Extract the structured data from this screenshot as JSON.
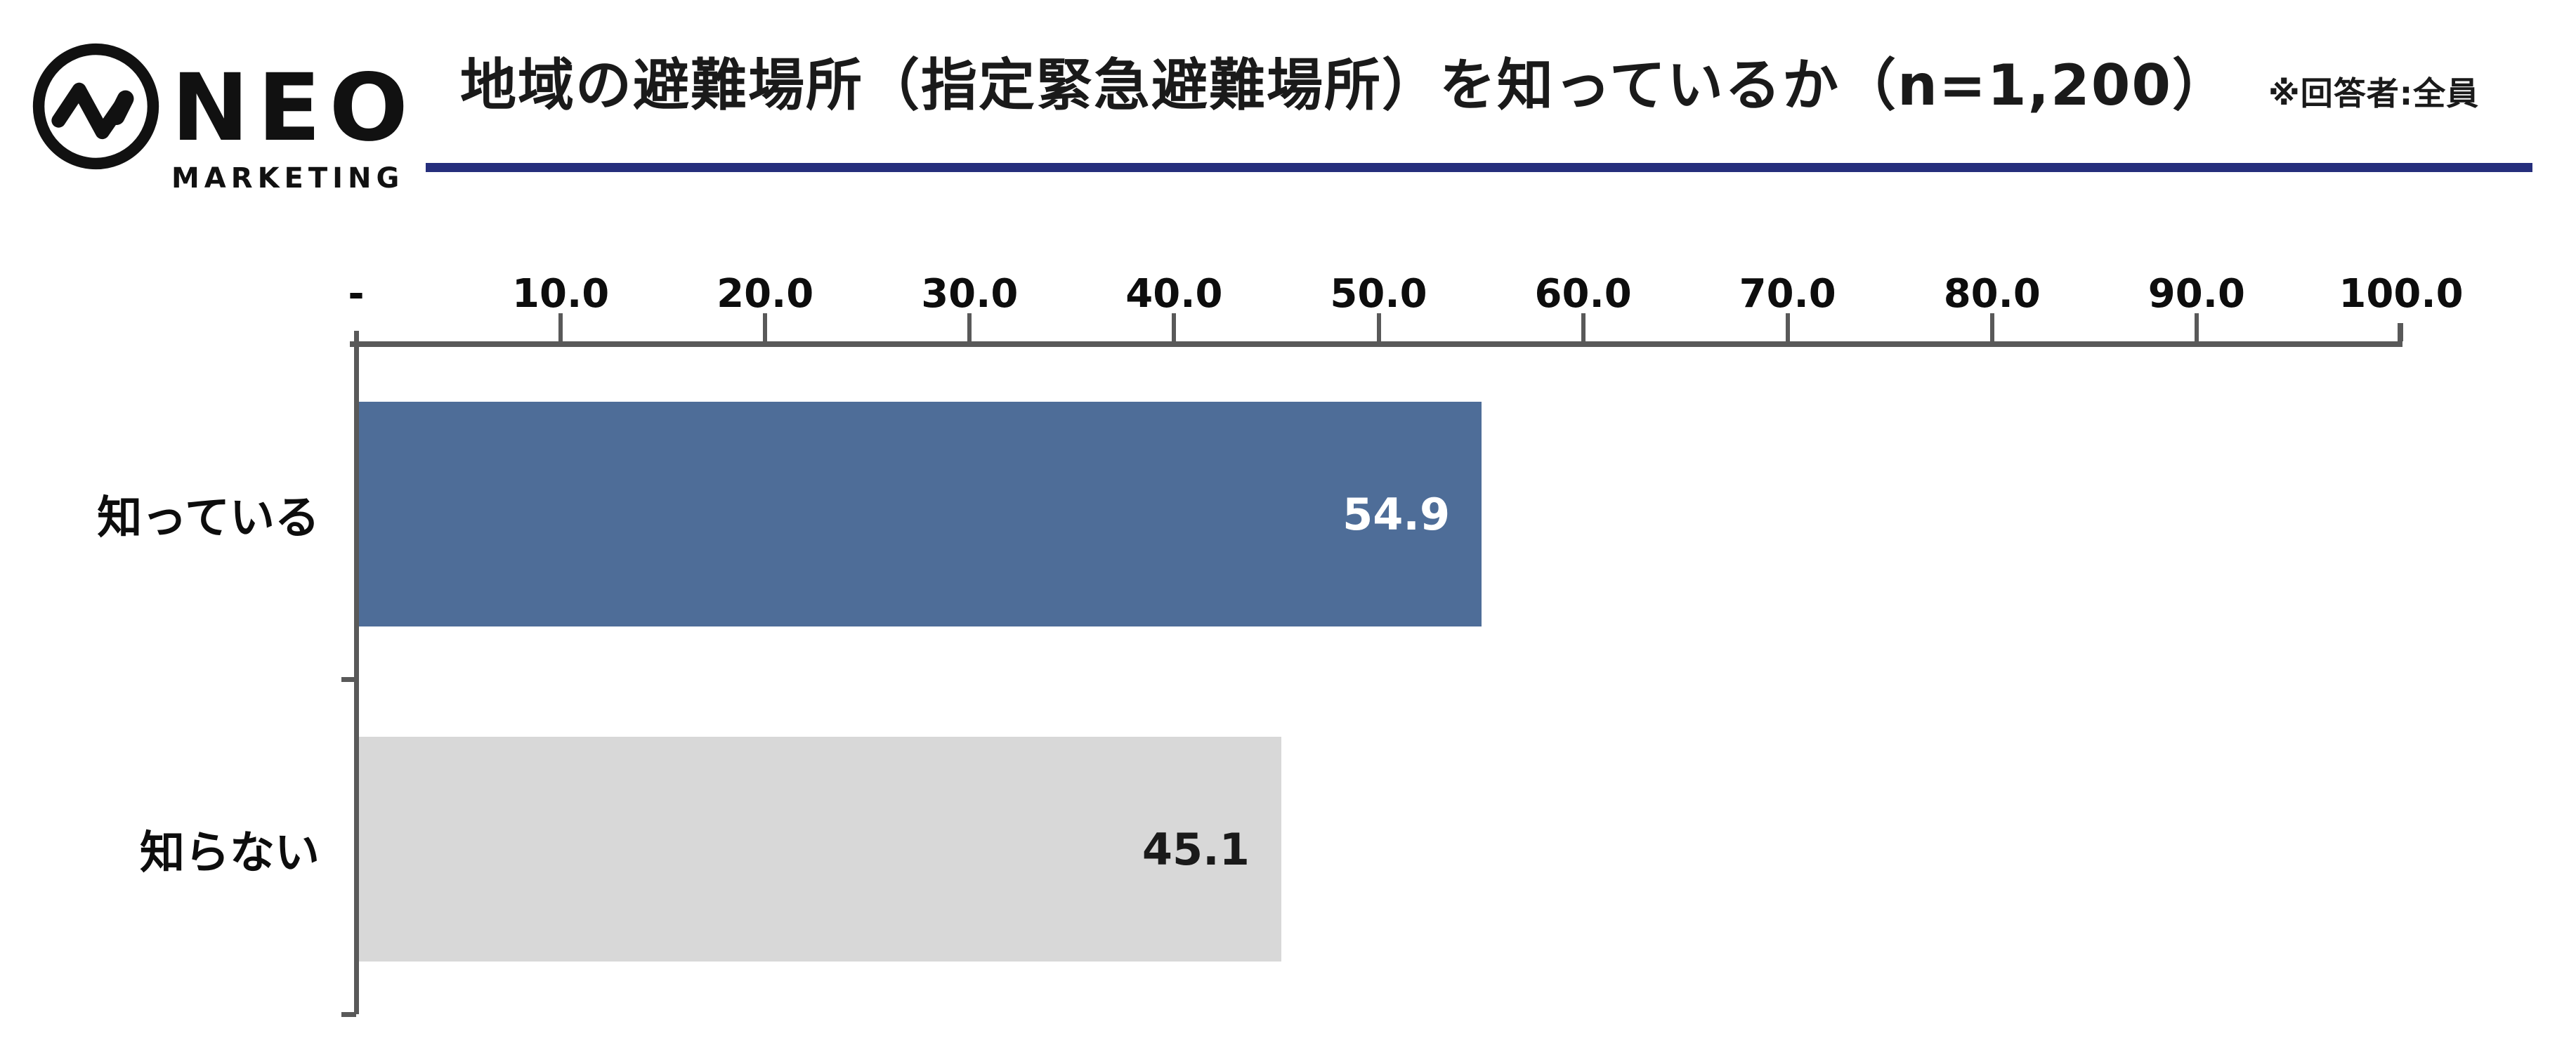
{
  "logo": {
    "name": "NEO",
    "subname": "MARKETING",
    "icon": "pulse-zigzag-in-circle",
    "color": "#111111"
  },
  "header": {
    "title": "地域の避難場所（指定緊急避難場所）を知っているか（n=1,200）",
    "note": "※回答者:全員",
    "underline_color": "#252e7c"
  },
  "chart_data": {
    "type": "bar",
    "orientation": "horizontal",
    "title": "地域の避難場所（指定緊急避難場所）を知っているか（n=1,200）",
    "note": "※回答者:全員",
    "categories": [
      "知っている",
      "知らない"
    ],
    "values": [
      54.9,
      45.1
    ],
    "value_labels": [
      "54.9",
      "45.1"
    ],
    "bar_colors": [
      "#4e6d98",
      "#d8d8d8"
    ],
    "value_label_colors": [
      "#ffffff",
      "#1a1a1a"
    ],
    "xlim": [
      0,
      100
    ],
    "x_ticks": [
      "-",
      "10.0",
      "20.0",
      "30.0",
      "40.0",
      "50.0",
      "60.0",
      "70.0",
      "80.0",
      "90.0",
      "100.0"
    ],
    "axis_color": "#595959",
    "grid": false,
    "legend": false
  }
}
